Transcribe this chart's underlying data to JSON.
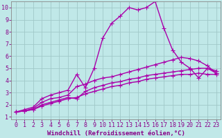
{
  "bg_color": "#c0e8e8",
  "grid_color": "#a0c8c8",
  "line_color": "#aa00aa",
  "marker": "+",
  "markersize": 4,
  "linewidth": 1.0,
  "xlabel": "Windchill (Refroidissement éolien,°C)",
  "xlabel_fontsize": 6.5,
  "tick_fontsize": 6,
  "xlim": [
    -0.5,
    23.5
  ],
  "ylim": [
    0.8,
    10.5
  ],
  "xticks": [
    0,
    1,
    2,
    3,
    4,
    5,
    6,
    7,
    8,
    9,
    10,
    11,
    12,
    13,
    14,
    15,
    16,
    17,
    18,
    19,
    20,
    21,
    22,
    23
  ],
  "yticks": [
    1,
    2,
    3,
    4,
    5,
    6,
    7,
    8,
    9,
    10
  ],
  "series": [
    {
      "x": [
        0,
        1,
        2,
        3,
        4,
        5,
        6,
        7,
        8,
        9,
        10,
        11,
        12,
        13,
        14,
        15,
        16,
        17,
        18,
        19,
        20,
        21,
        22,
        23
      ],
      "y": [
        1.4,
        1.6,
        1.8,
        2.5,
        2.8,
        3.0,
        3.2,
        4.5,
        3.4,
        5.0,
        7.5,
        8.7,
        9.3,
        10.0,
        9.8,
        10.0,
        10.5,
        8.3,
        6.5,
        5.5,
        5.0,
        4.2,
        5.0,
        4.6
      ]
    },
    {
      "x": [
        0,
        1,
        2,
        3,
        4,
        5,
        6,
        7,
        8,
        9,
        10,
        11,
        12,
        13,
        14,
        15,
        16,
        17,
        18,
        19,
        20,
        21,
        22,
        23
      ],
      "y": [
        1.4,
        1.5,
        1.7,
        2.2,
        2.5,
        2.6,
        2.8,
        3.5,
        3.7,
        4.0,
        4.2,
        4.3,
        4.5,
        4.7,
        4.9,
        5.1,
        5.3,
        5.5,
        5.7,
        5.9,
        5.8,
        5.6,
        5.2,
        4.6
      ]
    },
    {
      "x": [
        0,
        1,
        2,
        3,
        4,
        5,
        6,
        7,
        8,
        9,
        10,
        11,
        12,
        13,
        14,
        15,
        16,
        17,
        18,
        19,
        20,
        21,
        22,
        23
      ],
      "y": [
        1.4,
        1.5,
        1.6,
        1.9,
        2.1,
        2.3,
        2.5,
        2.6,
        2.9,
        3.1,
        3.3,
        3.5,
        3.6,
        3.8,
        3.9,
        4.1,
        4.2,
        4.3,
        4.4,
        4.5,
        4.5,
        4.6,
        4.5,
        4.5
      ]
    },
    {
      "x": [
        0,
        1,
        2,
        3,
        4,
        5,
        6,
        7,
        8,
        9,
        10,
        11,
        12,
        13,
        14,
        15,
        16,
        17,
        18,
        19,
        20,
        21,
        22,
        23
      ],
      "y": [
        1.4,
        1.5,
        1.6,
        2.0,
        2.2,
        2.4,
        2.6,
        2.5,
        3.1,
        3.4,
        3.6,
        3.8,
        3.9,
        4.1,
        4.2,
        4.4,
        4.5,
        4.6,
        4.7,
        4.8,
        4.9,
        5.0,
        5.0,
        4.8
      ]
    }
  ]
}
